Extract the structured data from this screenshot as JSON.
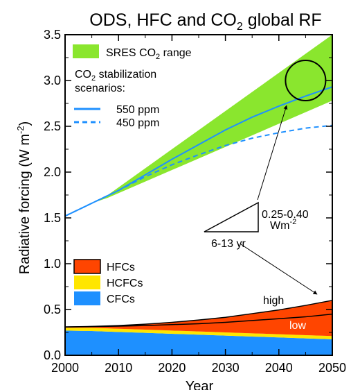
{
  "chart_data": {
    "type": "area",
    "title_main": "ODS, HFC and CO",
    "title_sub": "2",
    "title_rest": " global RF",
    "xlabel": "Year",
    "ylabel_main": "Radiative forcing (W m",
    "ylabel_sup": "-2",
    "ylabel_end": ")",
    "xlim": [
      2000,
      2050
    ],
    "ylim": [
      0,
      3.5
    ],
    "x_ticks": [
      "2000",
      "2010",
      "2020",
      "2030",
      "2040",
      "2050"
    ],
    "y_ticks": [
      "0.0",
      "0.5",
      "1.0",
      "1.5",
      "2.0",
      "2.5",
      "3.0",
      "3.5"
    ],
    "x_tick_values": [
      2000,
      2010,
      2020,
      2030,
      2040,
      2050
    ],
    "y_tick_values": [
      0,
      0.5,
      1,
      1.5,
      2,
      2.5,
      3,
      3.5
    ],
    "sres_range": {
      "label_main": "SRES CO",
      "label_sub": "2",
      "label_end": " range",
      "color": "#8ae62e",
      "x": [
        2000,
        2005,
        2008,
        2050
      ],
      "upper": [
        1.51,
        1.66,
        1.75,
        3.5
      ],
      "lower": [
        1.51,
        1.66,
        1.72,
        2.78
      ]
    },
    "stabilization_heading_1": "CO",
    "stabilization_heading_1_sub": "2",
    "stabilization_heading_1_end": " stabilization",
    "stabilization_heading_2": "scenarios:",
    "series": [
      {
        "name": "550 ppm",
        "color": "#1e90ff",
        "dash": "solid",
        "x": [
          2000,
          2005,
          2010,
          2015,
          2020,
          2025,
          2030,
          2035,
          2040,
          2045,
          2050
        ],
        "y": [
          1.52,
          1.66,
          1.8,
          1.97,
          2.14,
          2.3,
          2.46,
          2.6,
          2.72,
          2.83,
          2.93
        ]
      },
      {
        "name": "450 ppm",
        "color": "#1e90ff",
        "dash": "dashed",
        "x": [
          2000,
          2005,
          2010,
          2015,
          2020,
          2025,
          2030,
          2035,
          2040,
          2045,
          2050
        ],
        "y": [
          1.52,
          1.66,
          1.8,
          1.95,
          2.08,
          2.19,
          2.29,
          2.37,
          2.43,
          2.48,
          2.51
        ]
      }
    ],
    "stacked": {
      "x": [
        2000,
        2005,
        2010,
        2015,
        2020,
        2025,
        2030,
        2035,
        2040,
        2045,
        2050
      ],
      "cfcs": [
        0.27,
        0.265,
        0.255,
        0.245,
        0.235,
        0.225,
        0.215,
        0.205,
        0.195,
        0.185,
        0.175
      ],
      "hcfcs_top": [
        0.3,
        0.3,
        0.29,
        0.28,
        0.27,
        0.26,
        0.25,
        0.24,
        0.23,
        0.22,
        0.21
      ],
      "hfcs_high": [
        0.31,
        0.315,
        0.325,
        0.34,
        0.36,
        0.385,
        0.415,
        0.455,
        0.495,
        0.545,
        0.6
      ],
      "hfcs_low": [
        0.31,
        0.313,
        0.318,
        0.325,
        0.335,
        0.345,
        0.36,
        0.38,
        0.4,
        0.42,
        0.45
      ]
    },
    "stack_legend": [
      {
        "name": "HFCs",
        "color": "#ff4500"
      },
      {
        "name": "HCFCs",
        "color": "#ffe600"
      },
      {
        "name": "CFCs",
        "color": "#1e90ff"
      }
    ],
    "label_high": "high",
    "label_low": "low",
    "circle_center": [
      2045,
      3.0
    ],
    "triangle_label_rate": "0.25-0.40",
    "triangle_label_unit": "Wm",
    "triangle_label_unit_sup": "-2",
    "triangle_label_time": "6-13 yr"
  }
}
